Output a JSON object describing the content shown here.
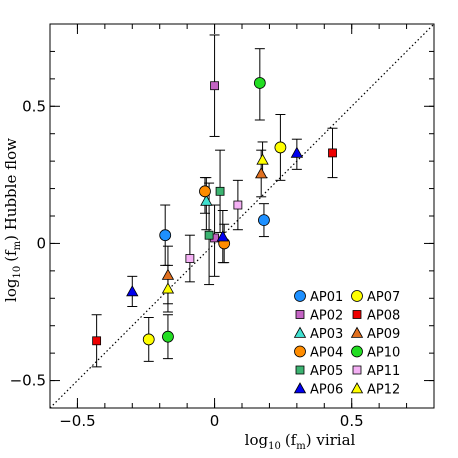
{
  "chart_data": {
    "type": "scatter",
    "xlabel_main": "log",
    "xlabel_sub": "10",
    "xlabel_paren_open": "(f",
    "xlabel_paren_sub": "m",
    "xlabel_rest": ") virial",
    "ylabel_main": "log",
    "ylabel_sub": "10",
    "ylabel_paren_open": "(f",
    "ylabel_paren_sub": "m",
    "ylabel_rest": ") Hubble flow",
    "xlim": [
      -0.6,
      0.8
    ],
    "ylim": [
      -0.6,
      0.8
    ],
    "xticks": [
      -0.5,
      0,
      0.5
    ],
    "xtick_labels": [
      "−0.5",
      "0",
      "0.5"
    ],
    "yticks": [
      -0.5,
      0,
      0.5
    ],
    "ytick_labels": [
      "−0.5",
      "0",
      "0.5"
    ],
    "reference_line": "y = x (dotted)",
    "legend_position": "bottom-right",
    "series": [
      {
        "name": "AP01",
        "marker": "circle",
        "color": "#1e90ff",
        "points": [
          {
            "x": -0.18,
            "y": 0.03,
            "ylo": -0.08,
            "yhi": 0.14
          },
          {
            "x": 0.18,
            "y": 0.085,
            "ylo": 0.025,
            "yhi": 0.145
          }
        ]
      },
      {
        "name": "AP02",
        "marker": "square",
        "color": "#c464c4",
        "points": [
          {
            "x": 0.0,
            "y": 0.575,
            "ylo": 0.39,
            "yhi": 0.76
          },
          {
            "x": 0.0,
            "y": 0.02,
            "ylo": -0.12,
            "yhi": 0.14
          }
        ]
      },
      {
        "name": "AP03",
        "marker": "triangle",
        "color": "#40e0d0",
        "points": [
          {
            "x": -0.03,
            "y": 0.155,
            "ylo": 0.05,
            "yhi": 0.24
          }
        ]
      },
      {
        "name": "AP04",
        "marker": "circle",
        "color": "#ff8c00",
        "points": [
          {
            "x": -0.035,
            "y": 0.19,
            "ylo": 0.11,
            "yhi": 0.24
          },
          {
            "x": 0.035,
            "y": 0.0,
            "ylo": -0.07,
            "yhi": 0.07
          }
        ]
      },
      {
        "name": "AP05",
        "marker": "square",
        "color": "#3cb371",
        "points": [
          {
            "x": -0.02,
            "y": 0.03,
            "ylo": -0.15,
            "yhi": 0.22
          },
          {
            "x": 0.02,
            "y": 0.19,
            "ylo": 0.04,
            "yhi": 0.34
          }
        ]
      },
      {
        "name": "AP06",
        "marker": "triangle",
        "color": "#0000ee",
        "points": [
          {
            "x": -0.3,
            "y": -0.175,
            "ylo": -0.23,
            "yhi": -0.12
          },
          {
            "x": 0.03,
            "y": 0.025,
            "ylo": -0.07,
            "yhi": 0.12
          },
          {
            "x": 0.3,
            "y": 0.33,
            "ylo": 0.27,
            "yhi": 0.38
          }
        ]
      },
      {
        "name": "AP07",
        "marker": "circle",
        "color": "#ffff00",
        "points": [
          {
            "x": -0.24,
            "y": -0.35,
            "ylo": -0.43,
            "yhi": -0.27
          },
          {
            "x": 0.24,
            "y": 0.35,
            "ylo": 0.23,
            "yhi": 0.47
          }
        ]
      },
      {
        "name": "AP08",
        "marker": "square",
        "color": "#ee0000",
        "points": [
          {
            "x": -0.43,
            "y": -0.355,
            "ylo": -0.45,
            "yhi": -0.26
          },
          {
            "x": 0.43,
            "y": 0.33,
            "ylo": 0.24,
            "yhi": 0.42
          }
        ]
      },
      {
        "name": "AP09",
        "marker": "triangle",
        "color": "#e07020",
        "points": [
          {
            "x": -0.17,
            "y": -0.115,
            "ylo": -0.22,
            "yhi": -0.01
          },
          {
            "x": 0.17,
            "y": 0.255,
            "ylo": 0.17,
            "yhi": 0.34
          }
        ]
      },
      {
        "name": "AP10",
        "marker": "circle",
        "color": "#22dd22",
        "points": [
          {
            "x": -0.17,
            "y": -0.34,
            "ylo": -0.42,
            "yhi": -0.26
          },
          {
            "x": 0.165,
            "y": 0.585,
            "ylo": 0.45,
            "yhi": 0.71
          }
        ]
      },
      {
        "name": "AP11",
        "marker": "square",
        "color": "#f4b0f4",
        "points": [
          {
            "x": -0.09,
            "y": -0.055,
            "ylo": -0.14,
            "yhi": 0.03
          },
          {
            "x": 0.085,
            "y": 0.14,
            "ylo": 0.05,
            "yhi": 0.23
          }
        ]
      },
      {
        "name": "AP12",
        "marker": "triangle",
        "color": "#ffff00",
        "points": [
          {
            "x": -0.17,
            "y": -0.165,
            "ylo": -0.25,
            "yhi": -0.08
          },
          {
            "x": 0.175,
            "y": 0.305,
            "ylo": 0.24,
            "yhi": 0.37
          }
        ]
      }
    ]
  }
}
